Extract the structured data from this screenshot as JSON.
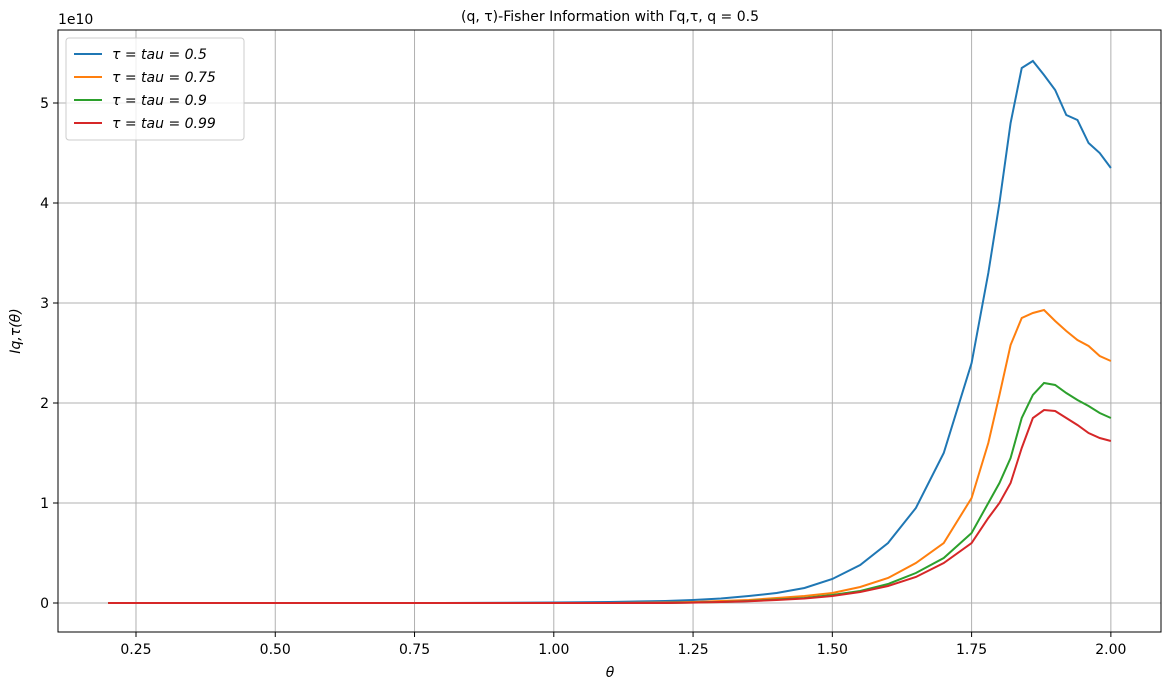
{
  "chart_data": {
    "type": "line",
    "title": "(q, τ)-Fisher Information with Γq,τ, q = 0.5",
    "x_label": "θ",
    "y_label": "Iq,τ(θ)",
    "y_offset_label": "1e10",
    "x": [
      0.2,
      0.4,
      0.6,
      0.8,
      1.0,
      1.1,
      1.2,
      1.25,
      1.3,
      1.35,
      1.4,
      1.45,
      1.5,
      1.55,
      1.6,
      1.65,
      1.7,
      1.75,
      1.78,
      1.8,
      1.82,
      1.84,
      1.86,
      1.88,
      1.9,
      1.92,
      1.94,
      1.96,
      1.98,
      2.0
    ],
    "series": [
      {
        "name": "τ = tau = 0.5",
        "color": "#1f77b4",
        "values": [
          0,
          0,
          0,
          0,
          0.005,
          0.01,
          0.02,
          0.03,
          0.045,
          0.07,
          0.1,
          0.15,
          0.24,
          0.38,
          0.6,
          0.95,
          1.5,
          2.4,
          3.3,
          4.0,
          4.8,
          5.35,
          5.42,
          5.28,
          5.13,
          4.88,
          4.83,
          4.6,
          4.5,
          4.35
        ]
      },
      {
        "name": "τ = tau = 0.75",
        "color": "#ff7f0e",
        "values": [
          0,
          0,
          0,
          0,
          0,
          0,
          0.005,
          0.01,
          0.02,
          0.03,
          0.05,
          0.07,
          0.1,
          0.16,
          0.25,
          0.4,
          0.6,
          1.05,
          1.6,
          2.08,
          2.58,
          2.85,
          2.9,
          2.93,
          2.82,
          2.72,
          2.63,
          2.57,
          2.47,
          2.42
        ]
      },
      {
        "name": "τ = tau = 0.9",
        "color": "#2ca02c",
        "values": [
          0,
          0,
          0,
          0,
          0,
          0,
          0,
          0.005,
          0.01,
          0.02,
          0.035,
          0.05,
          0.08,
          0.12,
          0.19,
          0.3,
          0.45,
          0.7,
          1.0,
          1.2,
          1.45,
          1.85,
          2.08,
          2.2,
          2.18,
          2.1,
          2.03,
          1.97,
          1.9,
          1.85
        ]
      },
      {
        "name": "τ = tau = 0.99",
        "color": "#d62728",
        "values": [
          0,
          0,
          0,
          0,
          0,
          0,
          0,
          0.004,
          0.01,
          0.018,
          0.03,
          0.045,
          0.07,
          0.11,
          0.17,
          0.26,
          0.4,
          0.6,
          0.85,
          1.0,
          1.2,
          1.55,
          1.85,
          1.93,
          1.92,
          1.85,
          1.78,
          1.7,
          1.65,
          1.62
        ]
      }
    ],
    "xlim": [
      0.11,
      2.09
    ],
    "ylim": [
      -0.29,
      5.73
    ],
    "xticks": [
      0.25,
      {
        "value": 0.5,
        "label": "0.50"
      },
      0.75,
      {
        "value": 1.0,
        "label": "1.00"
      },
      1.25,
      {
        "value": 1.5,
        "label": "1.50"
      },
      1.75,
      {
        "value": 2.0,
        "label": "2.00"
      }
    ],
    "yticks": [
      0,
      1,
      2,
      3,
      4,
      5
    ],
    "grid": true,
    "legend": "upper-left"
  }
}
